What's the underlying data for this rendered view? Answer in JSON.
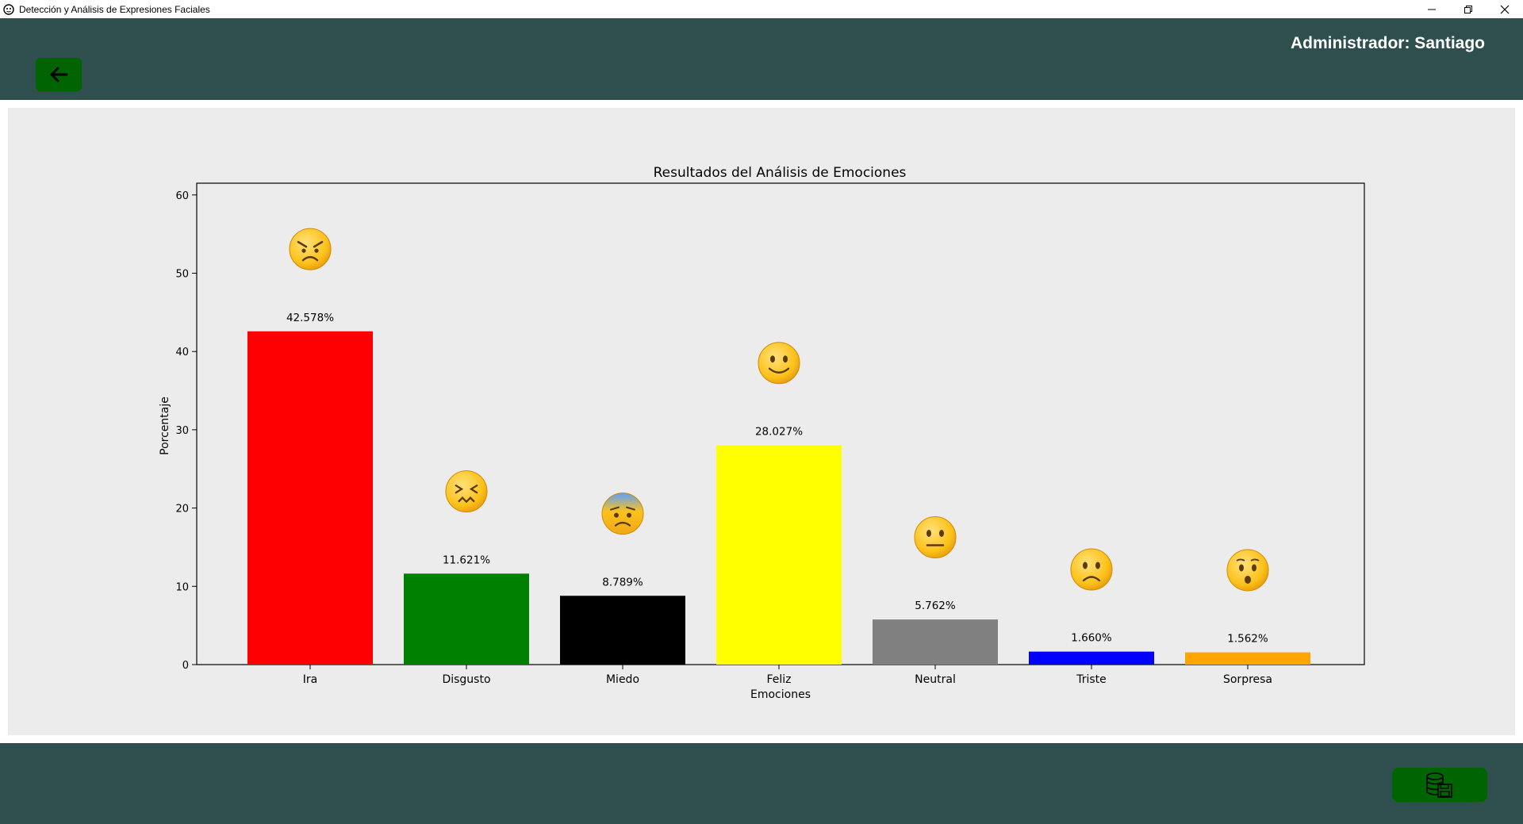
{
  "window": {
    "title": "Detección y Análisis de Expresiones Faciales"
  },
  "header": {
    "admin_label": "Administrador: Santiago",
    "back_icon": "arrow-left-icon"
  },
  "footer": {
    "db_icon": "database-save-icon"
  },
  "colors": {
    "header_bg": "#2f4f4f",
    "button_bg": "#006400",
    "content_bg": "#ececec"
  },
  "chart_data": {
    "type": "bar",
    "title": "Resultados del Análisis de Emociones",
    "xlabel": "Emociones",
    "ylabel": "Porcentaje",
    "ylim": [
      0,
      61.5
    ],
    "yticks": [
      0,
      10,
      20,
      30,
      40,
      50,
      60
    ],
    "categories": [
      "Ira",
      "Disgusto",
      "Miedo",
      "Feliz",
      "Neutral",
      "Triste",
      "Sorpresa"
    ],
    "values": [
      42.578,
      11.621,
      8.789,
      28.027,
      5.762,
      1.66,
      1.562
    ],
    "value_labels": [
      "42.578%",
      "11.621%",
      "8.789%",
      "28.027%",
      "5.762%",
      "1.660%",
      "1.562%"
    ],
    "colors": [
      "#ff0000",
      "#008000",
      "#000000",
      "#ffff00",
      "#808080",
      "#0000ff",
      "#ffa500"
    ],
    "emoji_icons": [
      "angry-face-icon",
      "confounded-face-icon",
      "fearful-face-icon",
      "smiling-face-icon",
      "neutral-face-icon",
      "frowning-face-icon",
      "hushed-face-icon"
    ],
    "grid": false,
    "legend": "none"
  }
}
